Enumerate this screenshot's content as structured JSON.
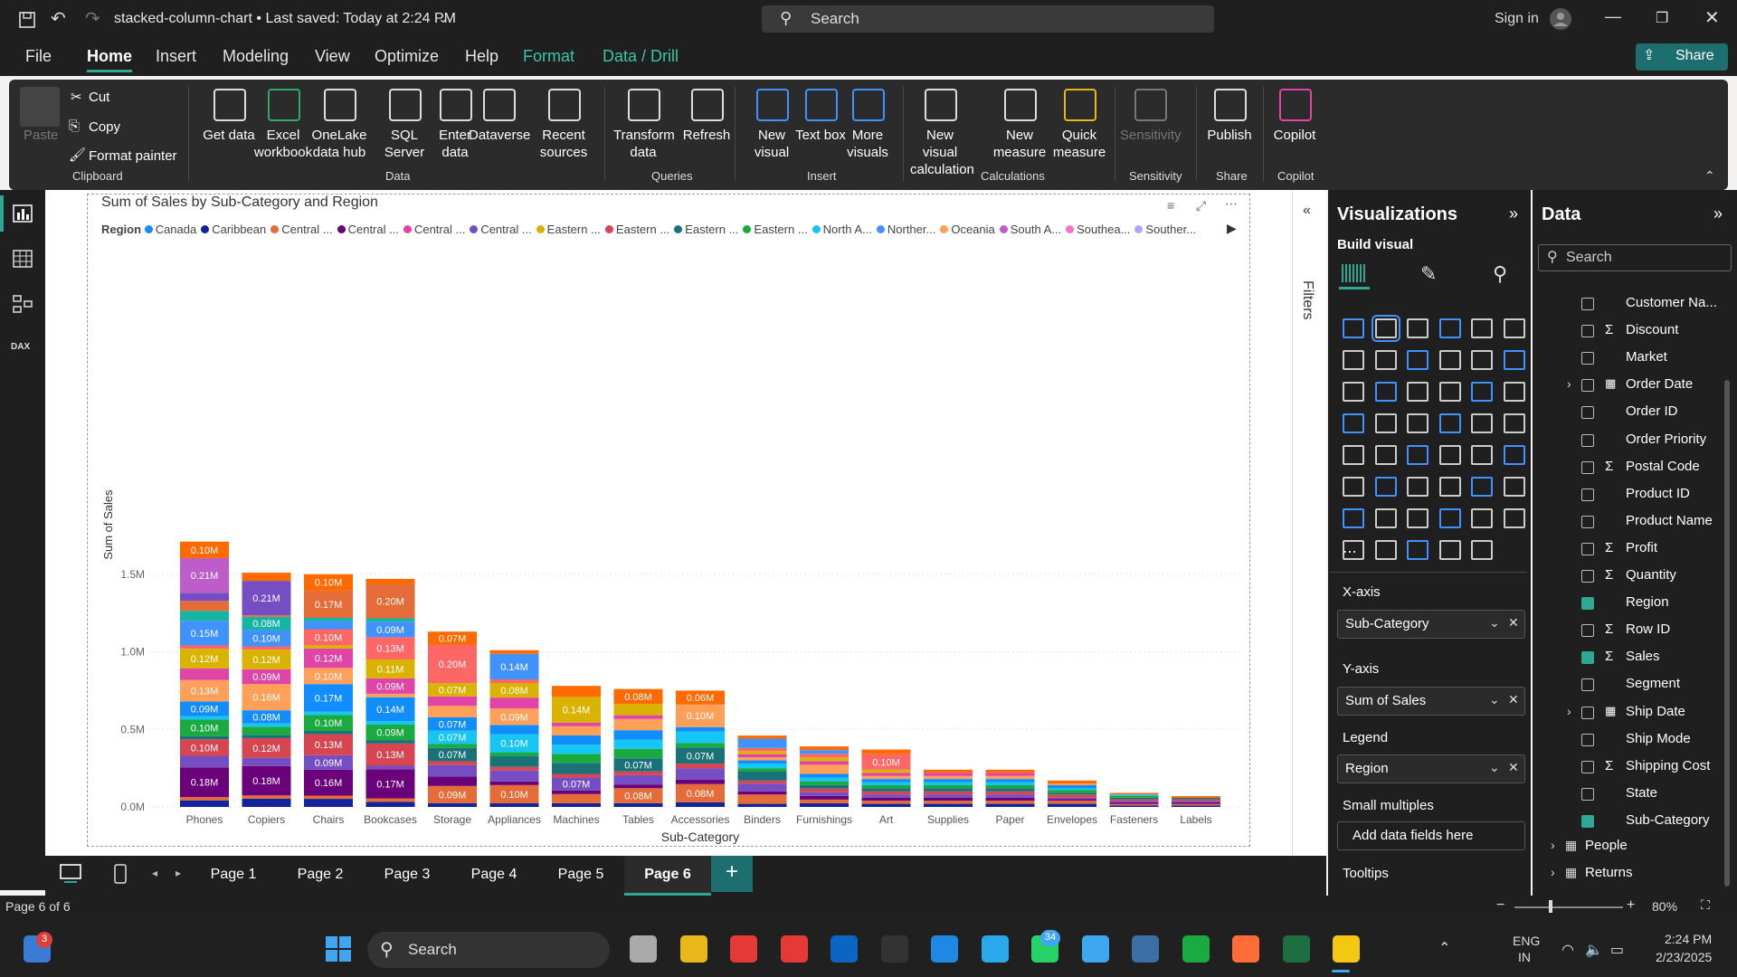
{
  "titlebar": {
    "title": "stacked-column-chart • Last saved: Today at 2:24 PM",
    "search": "Search",
    "signin": "Sign in"
  },
  "menu": [
    "File",
    "Home",
    "Insert",
    "Modeling",
    "View",
    "Optimize",
    "Help",
    "Format",
    "Data / Drill"
  ],
  "share": "Share",
  "ribbon": {
    "clipboard": {
      "paste": "Paste",
      "cut": "Cut",
      "copy": "Copy",
      "format_painter": "Format painter",
      "label": "Clipboard"
    },
    "data": {
      "items": [
        "Get data",
        "Excel workbook",
        "OneLake data hub",
        "SQL Server",
        "Enter data",
        "Dataverse",
        "Recent sources"
      ],
      "label": "Data"
    },
    "queries": {
      "items": [
        "Transform data",
        "Refresh"
      ],
      "label": "Queries"
    },
    "insert": {
      "items": [
        "New visual",
        "Text box",
        "More visuals"
      ],
      "label": "Insert"
    },
    "calculations": {
      "items": [
        "New visual calculation",
        "New measure",
        "Quick measure"
      ],
      "label": "Calculations"
    },
    "sensitivity": {
      "items": [
        "Sensitivity"
      ],
      "label": "Sensitivity"
    },
    "share": {
      "items": [
        "Publish"
      ],
      "label": "Share"
    },
    "copilot": {
      "items": [
        "Copilot"
      ],
      "label": "Copilot"
    }
  },
  "filters_label": "Filters",
  "visualizations": {
    "title": "Visualizations",
    "build": "Build visual",
    "x_axis": {
      "label": "X-axis",
      "value": "Sub-Category"
    },
    "y_axis": {
      "label": "Y-axis",
      "value": "Sum of Sales"
    },
    "legend": {
      "label": "Legend",
      "value": "Region"
    },
    "small_multiples": {
      "label": "Small multiples",
      "placeholder": "Add data fields here"
    },
    "tooltips": "Tooltips"
  },
  "data_pane": {
    "title": "Data",
    "search": "Search",
    "fields": [
      {
        "name": "Customer Na...",
        "checked": false
      },
      {
        "name": "Discount",
        "checked": false,
        "sigma": true
      },
      {
        "name": "Market",
        "checked": false
      },
      {
        "name": "Order Date",
        "checked": false,
        "expand": true
      },
      {
        "name": "Order ID",
        "checked": false
      },
      {
        "name": "Order Priority",
        "checked": false
      },
      {
        "name": "Postal Code",
        "checked": false,
        "sigma": true
      },
      {
        "name": "Product ID",
        "checked": false
      },
      {
        "name": "Product Name",
        "checked": false
      },
      {
        "name": "Profit",
        "checked": false,
        "sigma": true
      },
      {
        "name": "Quantity",
        "checked": false,
        "sigma": true
      },
      {
        "name": "Region",
        "checked": true
      },
      {
        "name": "Row ID",
        "checked": false,
        "sigma": true
      },
      {
        "name": "Sales",
        "checked": true,
        "sigma": true
      },
      {
        "name": "Segment",
        "checked": false
      },
      {
        "name": "Ship Date",
        "checked": false,
        "expand": true
      },
      {
        "name": "Ship Mode",
        "checked": false
      },
      {
        "name": "Shipping Cost",
        "checked": false,
        "sigma": true
      },
      {
        "name": "State",
        "checked": false
      },
      {
        "name": "Sub-Category",
        "checked": true
      }
    ],
    "tables": [
      "People",
      "Returns"
    ]
  },
  "pages": {
    "tabs": [
      "Page 1",
      "Page 2",
      "Page 3",
      "Page 4",
      "Page 5",
      "Page 6"
    ],
    "active": "Page 6",
    "status": "Page 6 of 6",
    "zoom": "80%"
  },
  "taskbar": {
    "search": "Search",
    "lang": "ENG",
    "region": "IN",
    "time": "2:24 PM",
    "date": "2/23/2025",
    "badge_store": "3",
    "badge_whatsapp": "34"
  },
  "chart_data": {
    "type": "bar",
    "stacked": true,
    "title": "Sum of Sales by Sub-Category and Region",
    "xlabel": "Sub-Category",
    "ylabel": "Sum of Sales",
    "legend_title": "Region",
    "legend": [
      "Canada",
      "Caribbean",
      "Central ...",
      "Central ...",
      "Central ...",
      "Central ...",
      "Eastern ...",
      "Eastern ...",
      "Eastern ...",
      "Eastern ...",
      "North A...",
      "Norther...",
      "Oceania",
      "South A...",
      "Southea...",
      "Souther..."
    ],
    "legend_colors": [
      "#118dff",
      "#12239e",
      "#e66c37",
      "#6b007b",
      "#e044a7",
      "#744ec2",
      "#d9b300",
      "#d64550",
      "#197278",
      "#1aab40",
      "#15c6f4",
      "#4092ff",
      "#ffa058",
      "#be5dc9",
      "#f472d0",
      "#b5a1ff"
    ],
    "yticks": [
      "0.0M",
      "0.5M",
      "1.0M",
      "1.5M"
    ],
    "ylim": [
      0,
      1.8
    ],
    "categories": [
      "Phones",
      "Copiers",
      "Chairs",
      "Bookcases",
      "Storage",
      "Appliances",
      "Machines",
      "Tables",
      "Accessories",
      "Binders",
      "Furnishings",
      "Art",
      "Supplies",
      "Paper",
      "Envelopes",
      "Fasteners",
      "Labels"
    ],
    "totals": [
      1.71,
      1.51,
      1.5,
      1.47,
      1.13,
      1.01,
      0.78,
      0.76,
      0.75,
      0.46,
      0.39,
      0.37,
      0.24,
      0.24,
      0.17,
      0.09,
      0.07
    ],
    "segment_colors": [
      "#12239e",
      "#e66c37",
      "#6b007b",
      "#744ec2",
      "#d64550",
      "#197278",
      "#1aab40",
      "#15c6f4",
      "#118dff",
      "#ffa058",
      "#e044a7",
      "#d9b300",
      "#ff6666",
      "#4092ff",
      "#16b5a3",
      "#e66c37",
      "#744ec2",
      "#be5dc9",
      "#f472d0",
      "#d9b300",
      "#12239e",
      "#4092ff",
      "#ff6a00"
    ],
    "segments": [
      [
        0.04,
        0.02,
        0.18,
        0.07,
        0.1,
        0.02,
        0.1,
        0.02,
        0.09,
        0.13,
        0.07,
        0.12,
        0.02,
        0.15,
        0.06,
        0.06,
        0.05,
        0.21,
        0.1
      ],
      [
        0.05,
        0.02,
        0.18,
        0.05,
        0.12,
        0.02,
        0.05,
        0.02,
        0.08,
        0.16,
        0.09,
        0.12,
        0.02,
        0.1,
        0.08,
        0.01,
        0.21,
        0.05
      ],
      [
        0.05,
        0.02,
        0.16,
        0.09,
        0.13,
        0.02,
        0.1,
        0.02,
        0.17,
        0.1,
        0.12,
        0.02,
        0.1,
        0.05,
        0.02,
        0.17,
        0.1
      ],
      [
        0.03,
        0.02,
        0.17,
        0.02,
        0.13,
        0.02,
        0.09,
        0.02,
        0.14,
        0.02,
        0.09,
        0.11,
        0.13,
        0.09,
        0.02,
        0.2,
        0.03
      ],
      [
        0.02,
        0.09,
        0.05,
        0.06,
        0.02,
        0.07,
        0.02,
        0.07,
        0.07,
        0.06,
        0.05,
        0.07,
        0.2,
        0.07
      ],
      [
        0.02,
        0.1,
        0.02,
        0.06,
        0.02,
        0.06,
        0.02,
        0.1,
        0.05,
        0.09,
        0.06,
        0.08,
        0.02,
        0.14,
        0.02
      ],
      [
        0.02,
        0.05,
        0.02,
        0.07,
        0.02,
        0.06,
        0.05,
        0.05,
        0.05,
        0.05,
        0.02,
        0.14,
        0.06
      ],
      [
        0.02,
        0.08,
        0.02,
        0.05,
        0.02,
        0.07,
        0.05,
        0.05,
        0.05,
        0.06,
        0.02,
        0.06,
        0.08
      ],
      [
        0.02,
        0.08,
        0.02,
        0.05,
        0.02,
        0.07,
        0.02,
        0.05,
        0.02,
        0.1,
        0.06
      ],
      [
        0.02,
        0.06,
        0.02,
        0.05,
        0.02,
        0.06,
        0.02,
        0.03,
        0.02,
        0.02,
        0.02,
        0.02,
        0.02,
        0.06,
        0.02
      ],
      [
        0.02,
        0.02,
        0.02,
        0.02,
        0.02,
        0.02,
        0.02,
        0.02,
        0.02,
        0.05,
        0.02,
        0.02,
        0.02,
        0.02,
        0.02
      ],
      [
        0.02,
        0.02,
        0.02,
        0.02,
        0.02,
        0.02,
        0.02,
        0.02,
        0.02,
        0.02,
        0.02,
        0.02,
        0.1,
        0.03
      ],
      [
        0.02,
        0.02,
        0.02,
        0.02,
        0.02,
        0.02,
        0.02,
        0.02,
        0.02,
        0.02,
        0.02,
        0.02
      ],
      [
        0.02,
        0.02,
        0.02,
        0.02,
        0.02,
        0.02,
        0.02,
        0.02,
        0.02,
        0.02,
        0.02,
        0.02
      ],
      [
        0.02,
        0.02,
        0.01,
        0.01,
        0.02,
        0.01,
        0.02,
        0.01,
        0.02,
        0.01,
        0.02
      ],
      [
        0.01,
        0.01,
        0.01,
        0.01,
        0.01,
        0.01,
        0.01,
        0.01,
        0.01
      ],
      [
        0.01,
        0.01,
        0.01,
        0.01,
        0.01,
        0.01,
        0.01
      ]
    ]
  }
}
